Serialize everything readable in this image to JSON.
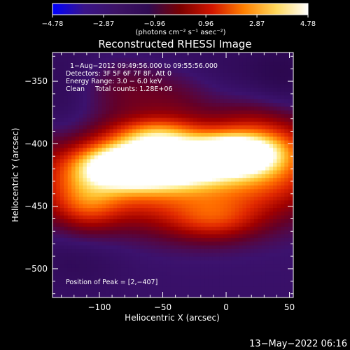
{
  "chart_data": {
    "type": "heatmap",
    "title": "Reconstructed RHESSI Image",
    "xlabel": "Heliocentric X (arcsec)",
    "ylabel": "Heliocentric Y (arcsec)",
    "xlim": [
      -137,
      53
    ],
    "ylim": [
      -523,
      -327
    ],
    "xticks": [
      -100,
      -50,
      0,
      50
    ],
    "yticks": [
      -350,
      -400,
      -450,
      -500
    ],
    "grid": false,
    "colormap": "red-temperature with blue negative",
    "colorbar": {
      "range": [
        -4.78,
        4.78
      ],
      "tick_labels": [
        "−4.78",
        "−2.87",
        "−0.96",
        "0.96",
        "2.87",
        "4.78"
      ],
      "unit_label": "(photons cm⁻² s⁻¹ asec⁻²)",
      "colors": [
        "#0000ff",
        "#3a1488",
        "#3d1366",
        "#300b52",
        "#7a0000",
        "#d21500",
        "#ff8000",
        "#ffd85c",
        "#ffffff"
      ]
    },
    "annotations": [
      "1−Aug−2012 09:49:56.000 to 09:55:56.000",
      "Detectors: 3F 5F 6F 7F 8F, Att 0",
      "Energy Range: 3.0 − 6.0 keV",
      "Clean     Total counts: 1.28E+06"
    ],
    "peak_label": "Position of Peak = [2,−407]",
    "peak": [
      2,
      -407
    ],
    "background_level": 0.22,
    "sources": [
      {
        "x": -78,
        "y": -418,
        "amp": 0.8,
        "sx": 25,
        "sy": 11
      },
      {
        "x": 6,
        "y": -408,
        "amp": 0.78,
        "sx": 22,
        "sy": 10
      },
      {
        "x": -35,
        "y": -416,
        "amp": 0.52,
        "sx": 26,
        "sy": 12
      },
      {
        "x": -55,
        "y": -395,
        "amp": 0.4,
        "sx": 22,
        "sy": 10
      },
      {
        "x": -50,
        "y": -425,
        "amp": 0.48,
        "sx": 80,
        "sy": 27
      },
      {
        "x": 30,
        "y": -405,
        "amp": 0.3,
        "sx": 28,
        "sy": 24
      },
      {
        "x": -110,
        "y": -445,
        "amp": 0.25,
        "sx": 18,
        "sy": 16
      },
      {
        "x": -10,
        "y": -460,
        "amp": 0.22,
        "sx": 25,
        "sy": 12
      },
      {
        "x": -85,
        "y": -355,
        "amp": 0.1,
        "sx": 24,
        "sy": 16
      },
      {
        "x": -40,
        "y": -360,
        "amp": 0.1,
        "sx": 24,
        "sy": 16
      }
    ],
    "dark_regions": [
      {
        "x": -128,
        "y": -377,
        "amp": 0.08,
        "sx": 22,
        "sy": 38
      },
      {
        "x": 46,
        "y": -352,
        "amp": 0.07,
        "sx": 20,
        "sy": 28
      },
      {
        "x": -5,
        "y": -345,
        "amp": 0.05,
        "sx": 45,
        "sy": 20
      },
      {
        "x": -120,
        "y": -490,
        "amp": 0.06,
        "sx": 30,
        "sy": 20
      }
    ]
  },
  "footer": {
    "timestamp": "13−May−2022 06:16"
  }
}
